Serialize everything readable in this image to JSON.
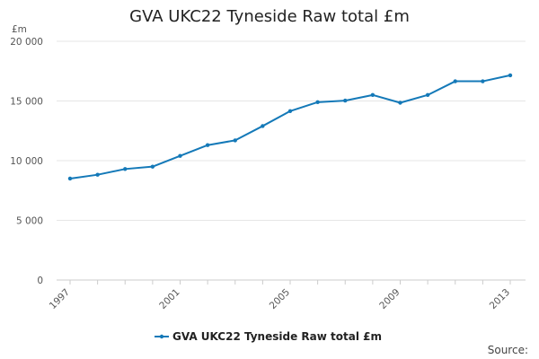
{
  "chart_data": {
    "type": "line",
    "title": "GVA UKC22 Tyneside Raw total £m",
    "ylabel": "£m",
    "xlabel": "",
    "ylim": [
      0,
      20000
    ],
    "xlim": [
      1997,
      2013
    ],
    "y_ticks": [
      0,
      5000,
      10000,
      15000,
      20000
    ],
    "y_tick_labels": [
      "0",
      "5 000",
      "10 000",
      "15 000",
      "20 000"
    ],
    "x_ticks": [
      1997,
      2001,
      2005,
      2009,
      2013
    ],
    "x_tick_labels": [
      "1997",
      "2001",
      "2005",
      "2009",
      "2013"
    ],
    "grid": true,
    "legend_position": "bottom",
    "series": [
      {
        "name": "GVA UKC22 Tyneside Raw total £m",
        "color": "#1479b8",
        "x": [
          1997,
          1998,
          1999,
          2000,
          2001,
          2002,
          2003,
          2004,
          2005,
          2006,
          2007,
          2008,
          2009,
          2010,
          2011,
          2012,
          2013
        ],
        "values": [
          8500,
          8820,
          9300,
          9500,
          10400,
          11300,
          11700,
          12900,
          14150,
          14900,
          15030,
          15500,
          14850,
          15500,
          16650,
          16650,
          17150
        ]
      }
    ],
    "source_label": "Source:"
  }
}
